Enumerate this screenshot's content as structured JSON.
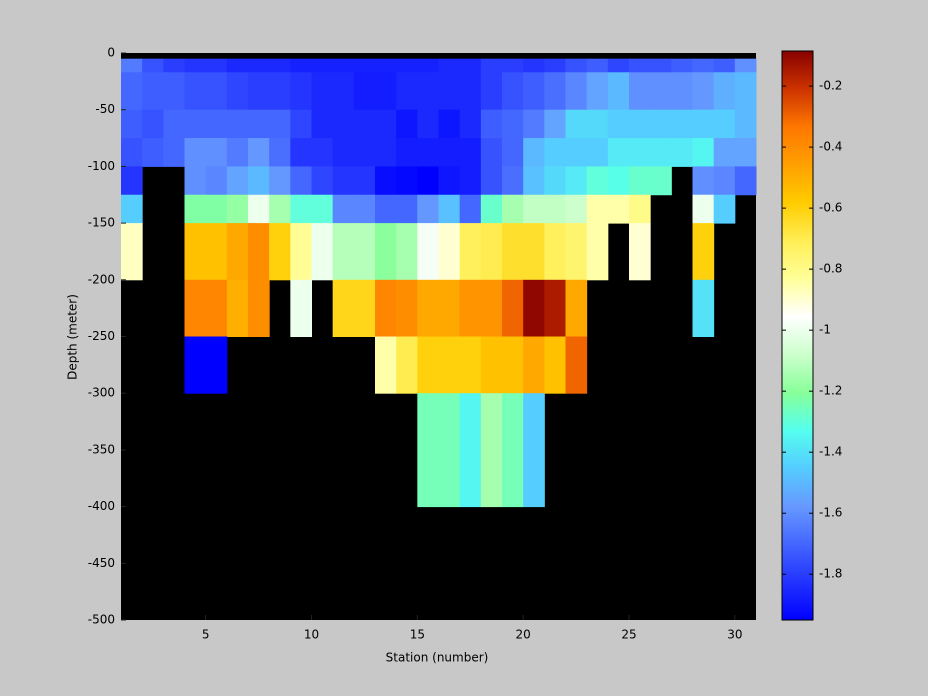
{
  "chart_data": {
    "type": "heatmap",
    "xlabel": "Station (number)",
    "ylabel": "Depth (meter)",
    "x": [
      1,
      2,
      3,
      4,
      5,
      6,
      7,
      8,
      9,
      10,
      11,
      12,
      13,
      14,
      15,
      16,
      17,
      18,
      19,
      20,
      21,
      22,
      23,
      24,
      25,
      26,
      27,
      28,
      29,
      30,
      31
    ],
    "y": [
      0,
      -5,
      -17,
      -50,
      -75,
      -100,
      -125,
      -150,
      -200,
      -250,
      -300,
      -400,
      -500
    ],
    "z": [
      [
        null,
        null,
        null,
        null,
        null,
        null,
        null,
        null,
        null,
        null,
        null,
        null,
        null,
        null,
        null,
        null,
        null,
        null,
        null,
        null,
        null,
        null,
        null,
        null,
        null,
        null,
        null,
        null,
        null,
        null
      ],
      [
        -1.65,
        -1.75,
        -1.8,
        -1.82,
        -1.82,
        -1.85,
        -1.85,
        -1.85,
        -1.87,
        -1.87,
        -1.87,
        -1.87,
        -1.87,
        -1.87,
        -1.87,
        -1.85,
        -1.85,
        -1.8,
        -1.8,
        -1.82,
        -1.8,
        -1.75,
        -1.72,
        -1.78,
        -1.75,
        -1.75,
        -1.72,
        -1.7,
        -1.72,
        -1.6
      ],
      [
        -1.7,
        -1.72,
        -1.72,
        -1.75,
        -1.75,
        -1.78,
        -1.8,
        -1.8,
        -1.82,
        -1.85,
        -1.85,
        -1.88,
        -1.88,
        -1.85,
        -1.85,
        -1.85,
        -1.85,
        -1.8,
        -1.75,
        -1.72,
        -1.68,
        -1.62,
        -1.55,
        -1.5,
        -1.6,
        -1.6,
        -1.6,
        -1.58,
        -1.52,
        -1.5
      ],
      [
        -1.72,
        -1.75,
        -1.7,
        -1.7,
        -1.7,
        -1.7,
        -1.7,
        -1.7,
        -1.78,
        -1.85,
        -1.85,
        -1.85,
        -1.85,
        -1.9,
        -1.85,
        -1.9,
        -1.85,
        -1.72,
        -1.7,
        -1.65,
        -1.55,
        -1.42,
        -1.42,
        -1.45,
        -1.45,
        -1.45,
        -1.45,
        -1.45,
        -1.45,
        -1.5
      ],
      [
        -1.75,
        -1.72,
        -1.7,
        -1.6,
        -1.6,
        -1.65,
        -1.58,
        -1.68,
        -1.82,
        -1.82,
        -1.85,
        -1.85,
        -1.85,
        -1.88,
        -1.88,
        -1.88,
        -1.88,
        -1.75,
        -1.7,
        -1.5,
        -1.45,
        -1.45,
        -1.45,
        -1.38,
        -1.38,
        -1.38,
        -1.38,
        -1.35,
        -1.55,
        -1.55
      ],
      [
        -1.82,
        null,
        null,
        -1.6,
        -1.62,
        -1.55,
        -1.5,
        -1.58,
        -1.7,
        -1.78,
        -1.82,
        -1.82,
        -1.92,
        -1.93,
        -1.95,
        -1.9,
        -1.88,
        -1.75,
        -1.68,
        -1.48,
        -1.42,
        -1.38,
        -1.3,
        -1.32,
        -1.28,
        -1.28,
        null,
        -1.6,
        -1.62,
        -1.7
      ],
      [
        -1.45,
        null,
        null,
        -1.22,
        -1.22,
        -1.18,
        -1.0,
        -1.15,
        -1.3,
        -1.3,
        -1.62,
        -1.62,
        -1.7,
        -1.7,
        -1.58,
        -1.48,
        -1.7,
        -1.28,
        -1.15,
        -1.1,
        -1.1,
        -1.08,
        -0.85,
        -0.85,
        -0.8,
        null,
        null,
        -1.0,
        -1.45,
        null
      ],
      [
        -0.88,
        null,
        null,
        -0.55,
        -0.55,
        -0.48,
        -0.4,
        -0.6,
        -0.82,
        -1.0,
        -1.12,
        -1.12,
        -1.2,
        -1.15,
        -0.98,
        -0.9,
        -0.72,
        -0.7,
        -0.65,
        -0.65,
        -0.72,
        -0.75,
        -0.85,
        null,
        -0.9,
        null,
        null,
        -0.6,
        null,
        null
      ],
      [
        null,
        null,
        null,
        -0.38,
        -0.38,
        -0.5,
        -0.4,
        null,
        -1.0,
        null,
        -0.62,
        -0.62,
        -0.38,
        -0.4,
        -0.48,
        -0.48,
        -0.42,
        -0.42,
        -0.3,
        -0.1,
        -0.15,
        -0.48,
        null,
        null,
        null,
        null,
        null,
        -1.4,
        null,
        null
      ],
      [
        null,
        null,
        null,
        -1.95,
        -1.95,
        null,
        null,
        null,
        null,
        null,
        null,
        null,
        -0.85,
        -0.7,
        -0.6,
        -0.6,
        -0.6,
        -0.55,
        -0.55,
        -0.48,
        -0.55,
        -0.3,
        null,
        null,
        null,
        null,
        null,
        null,
        null,
        null
      ],
      [
        null,
        null,
        null,
        null,
        null,
        null,
        null,
        null,
        null,
        null,
        null,
        null,
        null,
        null,
        -1.25,
        -1.25,
        -1.35,
        -1.15,
        -1.25,
        -1.45,
        null,
        null,
        null,
        null,
        null,
        null,
        null,
        null,
        null,
        null
      ],
      [
        null,
        null,
        null,
        null,
        null,
        null,
        null,
        null,
        null,
        null,
        null,
        null,
        null,
        null,
        null,
        null,
        null,
        null,
        null,
        null,
        null,
        null,
        null,
        null,
        null,
        null,
        null,
        null,
        null,
        null
      ]
    ],
    "xlim": [
      1,
      31
    ],
    "xticks": [
      5,
      10,
      15,
      20,
      25,
      30
    ],
    "ylim": [
      -500,
      0
    ],
    "yticks": [
      0,
      -50,
      -100,
      -150,
      -200,
      -250,
      -300,
      -350,
      -400,
      -450,
      -500
    ],
    "clim": [
      -1.95,
      -0.085
    ],
    "cticks": [
      -0.2,
      -0.4,
      -0.6,
      -0.8,
      -1,
      -1.2,
      -1.4,
      -1.6,
      -1.8
    ],
    "colormap": [
      "#0000ff",
      "#2233ff",
      "#4466ff",
      "#6699ff",
      "#55ccff",
      "#55ffee",
      "#88ff99",
      "#ccffcc",
      "#ffffff",
      "#ffff99",
      "#ffee55",
      "#ffcc00",
      "#ffa000",
      "#ff7700",
      "#cc3300",
      "#880000"
    ],
    "missing_color": "#000000"
  }
}
